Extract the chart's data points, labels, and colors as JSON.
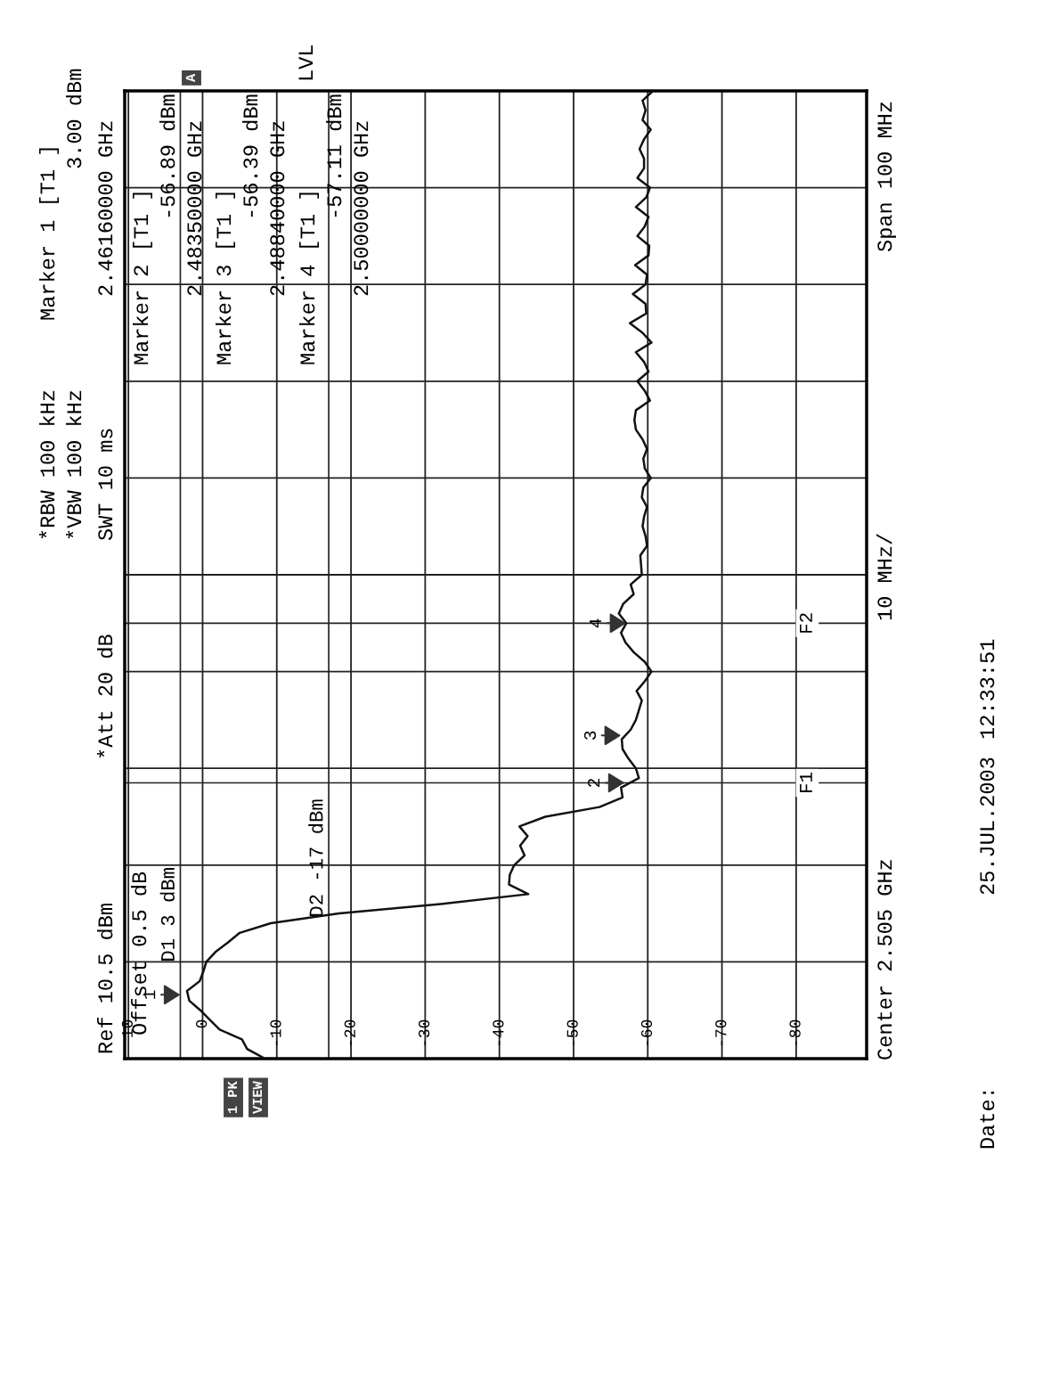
{
  "chart_data": {
    "type": "line",
    "orientation": "horizontal",
    "annotations": [
      "Ref 10.5 dBm",
      "Offset 0.5 dB",
      "*Att 20 dB",
      "*RBW 100 kHz",
      "*VBW 100 kHz",
      "SWT 10 ms",
      "Marker 1 [T1 ]",
      "3.00 dBm",
      "2.46160000 GHz",
      "Marker 2 [T1 ]",
      "-56.89 dBm",
      "2.48350000 GHz",
      "Marker 3 [T1 ]",
      "-56.39 dBm",
      "2.48840000 GHz",
      "Marker 4 [T1 ]",
      "-57.11 dBm",
      "2.50000000 GHz",
      "Center 2.505 GHz",
      "10 MHz/",
      "Span 100 MHz",
      "Date:",
      "25.JUL.2003",
      "12:33:51",
      "A",
      "LVL",
      "1 PK",
      "VIEW",
      {
        "text": "1",
        "x": 3.0
      },
      {
        "text": "2",
        "x": -56.89
      },
      {
        "text": "3",
        "x": -56.39
      },
      {
        "text": "4",
        "x": -57.11
      },
      "F1",
      "F2"
    ],
    "categories": [
      null,
      null,
      null,
      null,
      null,
      null,
      null,
      null,
      null,
      null,
      null,
      null,
      null,
      null,
      null,
      null,
      null,
      null,
      null,
      null,
      null,
      null,
      null,
      null,
      null,
      null,
      null,
      null,
      null,
      null,
      null,
      null,
      null,
      null,
      null,
      null,
      null,
      null,
      null,
      null,
      null,
      null,
      null,
      null,
      null,
      null,
      null,
      null,
      null,
      null,
      null,
      null,
      null,
      null,
      null,
      null,
      null,
      null,
      null,
      null,
      null,
      null,
      null,
      null,
      null,
      null,
      null,
      null,
      null,
      null,
      null,
      null,
      null,
      null,
      null,
      null,
      null,
      null,
      null,
      null,
      null,
      null,
      null,
      null,
      null,
      null,
      null,
      null,
      null,
      null,
      null,
      null,
      null,
      null,
      null,
      null,
      null,
      null,
      null,
      null,
      null
    ],
    "series": [
      {
        "color": "#111111",
        "values": [
          -60.7,
          -59.3,
          -59.7,
          -59.3,
          -60.4,
          -59.5,
          -58.9,
          -59.5,
          -59.5,
          -58.6,
          -60.3,
          -59.8,
          -58.4,
          -60.1,
          -59.6,
          -58.6,
          -60.2,
          -60.1,
          -58.3,
          -59.9,
          -59.7,
          -58.0,
          -59.7,
          -59.8,
          -57.6,
          -59.3,
          -60.5,
          -58.4,
          -59.5,
          -60.1,
          -58.6,
          -59.6,
          -60.3,
          -58.4,
          -58.2,
          -58.4,
          -59.3,
          -59.9,
          -59.4,
          -59.6,
          -60.4,
          -59.4,
          -59.2,
          -59.9,
          -59.5,
          -59.3,
          -59.7,
          -59.9,
          -59.0,
          -59.1,
          -59.2,
          -57.7,
          -58.1,
          -56.7,
          -56.1,
          -57.1,
          -56.4,
          -57.0,
          -58.1,
          -59.6,
          -60.5,
          -59.6,
          -58.5,
          -59.2,
          -58.8,
          -58.4,
          -57.7,
          -56.5,
          -56.6,
          -57.4,
          -58.4,
          -58.8,
          -56.4,
          -56.6,
          -53.5,
          -46.2,
          -42.7,
          -43.8,
          -42.8,
          -43.4,
          -42.0,
          -41.4,
          -41.3,
          -43.9,
          -32.4,
          -18.4,
          -9.2,
          -5.0,
          -3.4,
          -1.7,
          -0.5,
          -0.1,
          0.4,
          2.1,
          1.8,
          0.3,
          -1.0,
          -2.3,
          -5.3,
          -6.0,
          -8.4
        ]
      }
    ],
    "xlim": [
      10.5,
      -89.5
    ],
    "xticks": [
      10,
      0,
      -10,
      -20,
      -30,
      -40,
      -50,
      -60,
      -70,
      -80
    ],
    "grid": true,
    "ref_lines": [
      {
        "axis": "x",
        "value": 3,
        "label": "D1 3 dBm"
      },
      {
        "axis": "x",
        "value": -17,
        "label": "D2 -17 dBm"
      }
    ]
  }
}
